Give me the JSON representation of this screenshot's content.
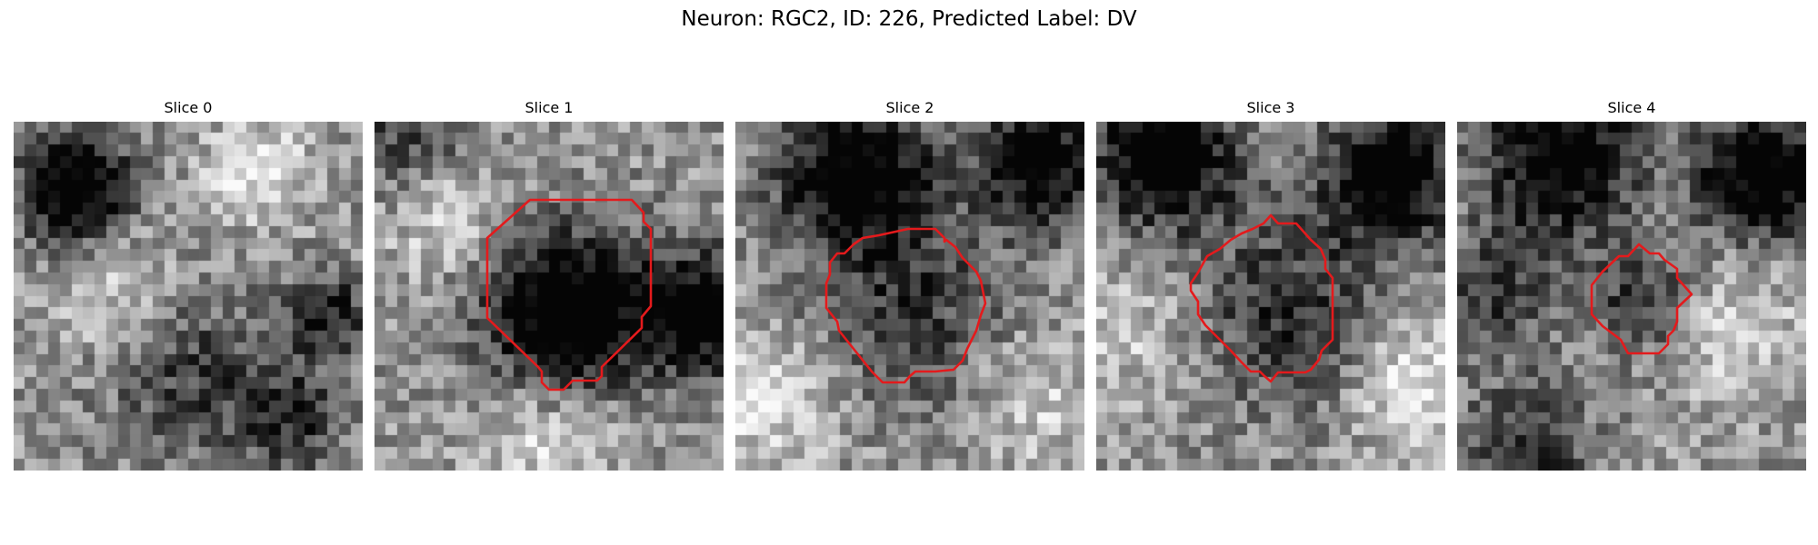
{
  "figure": {
    "title": "Neuron: RGC2, ID: 226, Predicted Label: DV",
    "contour_color": "#e41a1c",
    "colormap": "gray",
    "panels": [
      {
        "title": "Slice 0",
        "has_contour": false
      },
      {
        "title": "Slice 1",
        "has_contour": true
      },
      {
        "title": "Slice 2",
        "has_contour": true
      },
      {
        "title": "Slice 3",
        "has_contour": true
      },
      {
        "title": "Slice 4",
        "has_contour": true
      }
    ]
  }
}
